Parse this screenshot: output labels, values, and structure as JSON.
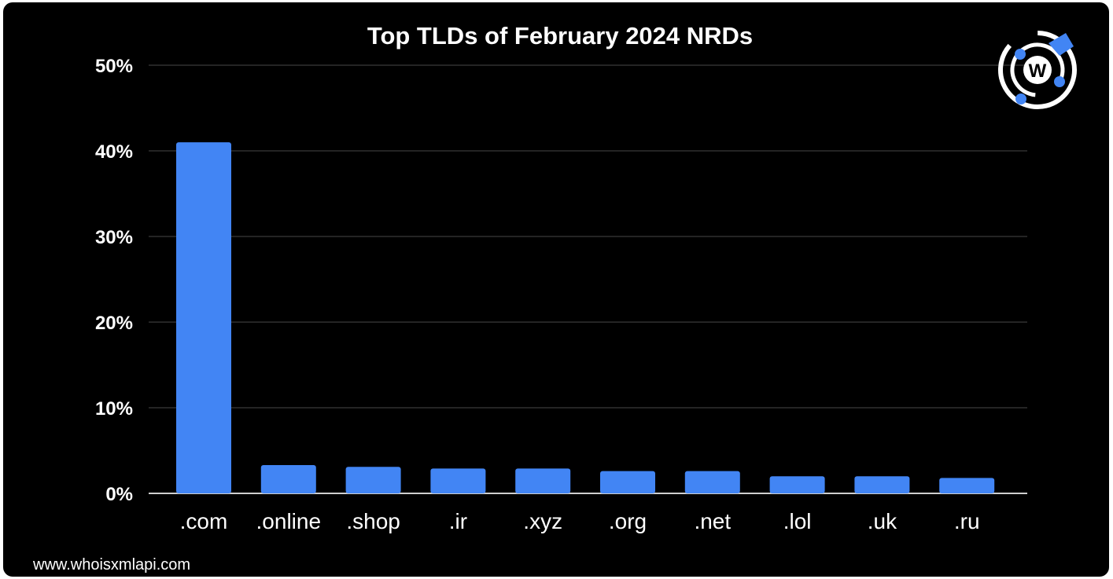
{
  "colors": {
    "background": "#000000",
    "bar": "#4285f4",
    "text": "#ffffff",
    "grid": "#3a3a3a"
  },
  "logo": {
    "icon": "whoisxmlapi-logo-icon",
    "letter": "W"
  },
  "footer": {
    "source": "www.whoisxmlapi.com"
  },
  "chart_data": {
    "type": "bar",
    "title": "Top TLDs of February 2024 NRDs",
    "xlabel": "",
    "ylabel": "",
    "categories": [
      ".com",
      ".online",
      ".shop",
      ".ir",
      ".xyz",
      ".org",
      ".net",
      ".lol",
      ".uk",
      ".ru"
    ],
    "values": [
      41.0,
      3.3,
      3.1,
      2.9,
      2.9,
      2.6,
      2.6,
      2.0,
      2.0,
      1.8
    ],
    "unit": "%",
    "ylim": [
      0,
      50
    ],
    "yticks": [
      "0%",
      "10%",
      "20%",
      "30%",
      "40%",
      "50%"
    ],
    "grid": true,
    "legend": "none"
  }
}
